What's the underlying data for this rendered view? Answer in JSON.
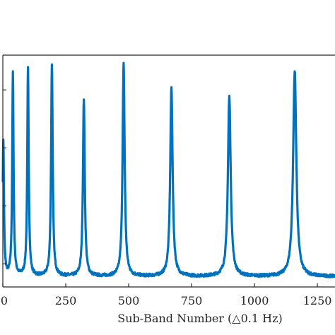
{
  "chart_data": {
    "type": "line",
    "xlabel": "Sub-Band Number (△0.1 Hz)",
    "ylabel": "",
    "xlim": [
      0,
      1320
    ],
    "ylim": [
      0,
      1
    ],
    "x_ticks": [
      0,
      250,
      500,
      750,
      1000,
      1250
    ],
    "x_tick_labels": [
      "0",
      "250",
      "500",
      "750",
      "1000",
      "1250"
    ],
    "y_ticks": [
      0.1,
      0.35,
      0.6,
      0.85
    ],
    "grid": false,
    "line_color": "#0072BD",
    "axis_color": "#262626",
    "baseline": 0.045,
    "peaks": [
      {
        "x": 2,
        "value": 0.63
      },
      {
        "x": 40,
        "value": 0.92
      },
      {
        "x": 100,
        "value": 0.94
      },
      {
        "x": 195,
        "value": 0.96
      },
      {
        "x": 322,
        "value": 0.81
      },
      {
        "x": 480,
        "value": 0.96
      },
      {
        "x": 670,
        "value": 0.86
      },
      {
        "x": 900,
        "value": 0.82
      },
      {
        "x": 1160,
        "value": 0.93
      }
    ]
  }
}
